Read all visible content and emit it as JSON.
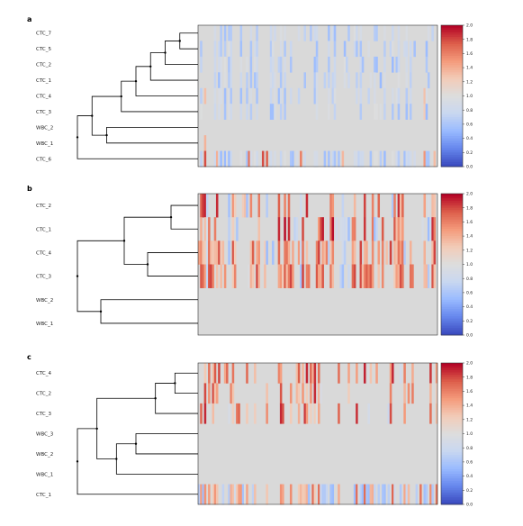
{
  "colors": {
    "background": "#d9d9d9",
    "colormap": [
      "#3b4cc0",
      "#6788ee",
      "#9abbff",
      "#c9d7f0",
      "#dddddd",
      "#f2cbb7",
      "#f49a7b",
      "#dd5f4b",
      "#b40426"
    ]
  },
  "colorbar_ticks": [
    "0.0",
    "0.2",
    "0.4",
    "0.6",
    "0.8",
    "1.0",
    "1.2",
    "1.4",
    "1.6",
    "1.8",
    "2.0"
  ],
  "chart_data": [
    {
      "panel": "a",
      "type": "heatmap",
      "rows": [
        "CTC_7",
        "CTC_5",
        "CTC_2",
        "CTC_1",
        "CTC_4",
        "CTC_3",
        "WBC_2",
        "WBC_1",
        "CTC_6"
      ],
      "colorbar": {
        "min": 0.0,
        "max": 2.0
      },
      "dendrogram": [
        [
          0,
          1
        ],
        [
          9,
          2
        ],
        [
          10,
          3
        ],
        [
          11,
          4
        ],
        [
          12,
          5
        ],
        [
          6,
          7
        ],
        [
          13,
          14
        ],
        [
          15,
          8
        ]
      ]
    },
    {
      "panel": "b",
      "type": "heatmap",
      "rows": [
        "CTC_2",
        "CTC_1",
        "CTC_4",
        "CTC_3",
        "WBC_2",
        "WBC_1"
      ],
      "colorbar": {
        "min": 0.0,
        "max": 2.0
      },
      "dendrogram": [
        [
          0,
          1
        ],
        [
          2,
          3
        ],
        [
          6,
          7
        ],
        [
          4,
          5
        ],
        [
          8,
          9
        ]
      ]
    },
    {
      "panel": "c",
      "type": "heatmap",
      "rows": [
        "CTC_4",
        "CTC_2",
        "CTC_3",
        "WBC_3",
        "WBC_2",
        "WBC_1",
        "CTC_1"
      ],
      "colorbar": {
        "min": 0.0,
        "max": 2.0
      },
      "dendrogram": [
        [
          0,
          1
        ],
        [
          7,
          2
        ],
        [
          3,
          4
        ],
        [
          9,
          5
        ],
        [
          8,
          10
        ],
        [
          11,
          6
        ]
      ]
    }
  ]
}
